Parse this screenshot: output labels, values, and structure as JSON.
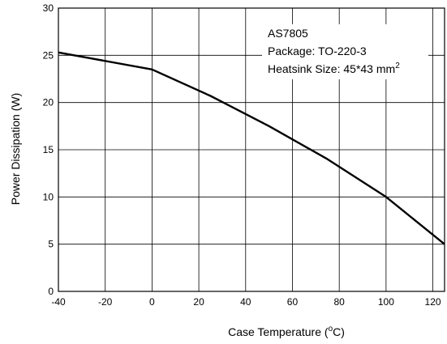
{
  "chart_data": {
    "type": "line",
    "xlabel": "Case Temperature (",
    "xlabel_sup": "o",
    "xlabel_end": "C)",
    "ylabel": "Power Dissipation (W)",
    "xlim": [
      -40,
      125
    ],
    "ylim": [
      0,
      30
    ],
    "x_ticks": [
      -40,
      -20,
      0,
      20,
      40,
      60,
      80,
      100,
      120
    ],
    "y_ticks": [
      0,
      5,
      10,
      15,
      20,
      25,
      30
    ],
    "grid": true,
    "series": [
      {
        "x": [
          -40,
          0,
          25,
          50,
          75,
          100,
          125
        ],
        "y": [
          25.3,
          23.5,
          20.7,
          17.5,
          14.0,
          10.0,
          5.0
        ]
      }
    ],
    "annotation": {
      "line1": "AS7805",
      "line2": "Package: TO-220-3",
      "line3": "Heatsink Size: 45*43 mm",
      "line3_sup": "2"
    }
  }
}
